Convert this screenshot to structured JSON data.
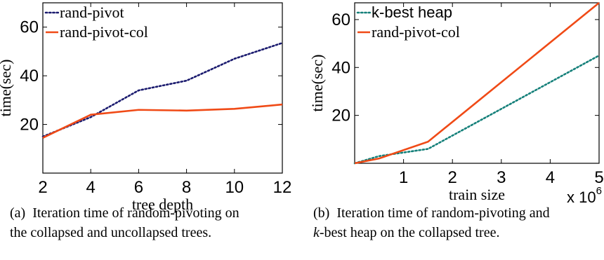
{
  "chart_data": [
    {
      "type": "line",
      "x": [
        2,
        4,
        6,
        8,
        10,
        12
      ],
      "xlim": [
        2,
        12
      ],
      "ylim": [
        0,
        70
      ],
      "xticks": [
        "2",
        "4",
        "6",
        "8",
        "10",
        "12"
      ],
      "yticks": [
        "20",
        "40",
        "60"
      ],
      "ytick_values": [
        20,
        40,
        60
      ],
      "xlabel": "tree depth",
      "ylabel": "time(sec)",
      "legend": "top-left",
      "grid": false,
      "series": [
        {
          "name": "rand-pivot",
          "color": "#1a1a6e",
          "style": "dotted",
          "values": [
            15,
            23,
            34,
            38,
            47,
            53.5
          ]
        },
        {
          "name": "rand-pivot-col",
          "color": "#f04a16",
          "style": "solid",
          "values": [
            14.5,
            24,
            26,
            25.7,
            26.4,
            28.2
          ]
        }
      ],
      "caption": {
        "prefix": "(a)",
        "line1": "Iteration time of random-pivoting on",
        "line2": "the collapsed and uncollapsed trees."
      }
    },
    {
      "type": "line",
      "xlim": [
        0,
        5
      ],
      "ylim": [
        0,
        67
      ],
      "xticks": [
        "1",
        "2",
        "3",
        "4",
        "5"
      ],
      "xtick_values": [
        1,
        2,
        3,
        4,
        5
      ],
      "yticks": [
        "20",
        "40",
        "60"
      ],
      "ytick_values": [
        20,
        40,
        60
      ],
      "x_multiplier": {
        "base": "x 10",
        "exp": "6"
      },
      "xlabel": "train size",
      "ylabel": "time(sec)",
      "legend": "top-left",
      "grid": false,
      "series": [
        {
          "name": "k-best heap",
          "color": "#15807a",
          "style": "dotted",
          "x": [
            0,
            0.5,
            1.5,
            5
          ],
          "values": [
            0,
            3,
            6,
            45
          ]
        },
        {
          "name": "rand-pivot-col",
          "color": "#f04a16",
          "style": "solid",
          "x": [
            0,
            0.5,
            1.5,
            5
          ],
          "values": [
            0,
            2,
            9,
            67
          ]
        }
      ],
      "caption": {
        "prefix": "(b)",
        "line1": "Iteration time of random-pivoting and",
        "line2_italic": "k",
        "line2": "-best heap on the collapsed tree."
      }
    }
  ]
}
